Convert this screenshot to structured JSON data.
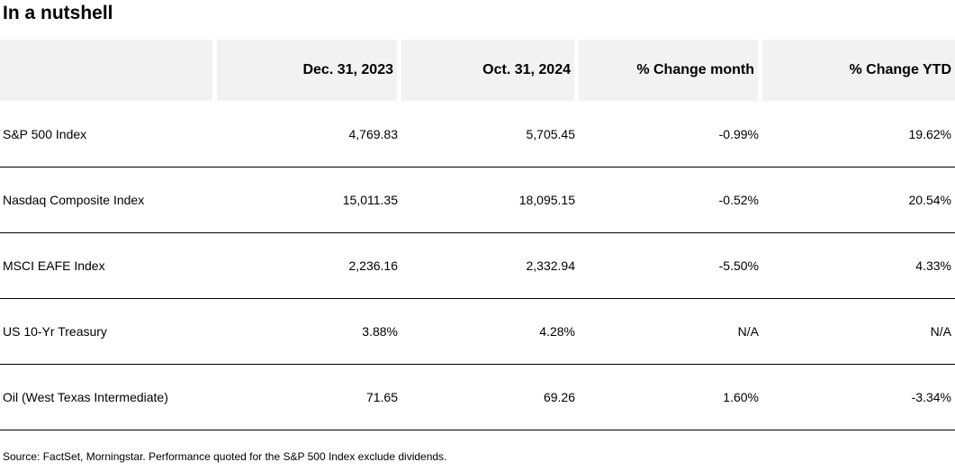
{
  "title": "In a nutshell",
  "table": {
    "headers": [
      "",
      "Dec. 31, 2023",
      "Oct. 31, 2024",
      "% Change month",
      "% Change YTD"
    ],
    "rows": [
      {
        "name": "S&P 500 Index",
        "dec_2023": "4,769.83",
        "oct_2024": "5,705.45",
        "change_month": "-0.99%",
        "change_ytd": "19.62%"
      },
      {
        "name": "Nasdaq Composite Index",
        "dec_2023": "15,011.35",
        "oct_2024": "18,095.15",
        "change_month": "-0.52%",
        "change_ytd": "20.54%"
      },
      {
        "name": "MSCI EAFE Index",
        "dec_2023": "2,236.16",
        "oct_2024": "2,332.94",
        "change_month": "-5.50%",
        "change_ytd": "4.33%"
      },
      {
        "name": "US 10-Yr Treasury",
        "dec_2023": "3.88%",
        "oct_2024": "4.28%",
        "change_month": "N/A",
        "change_ytd": "N/A"
      },
      {
        "name": "Oil (West Texas Intermediate)",
        "dec_2023": "71.65",
        "oct_2024": "69.26",
        "change_month": "1.60%",
        "change_ytd": "-3.34%"
      }
    ]
  },
  "source": "Source: FactSet, Morningstar. Performance quoted for the S&P 500 Index exclude dividends.",
  "colors": {
    "header_bg": "#f2f2f2",
    "row_divider": "#000000",
    "text": "#000000"
  }
}
